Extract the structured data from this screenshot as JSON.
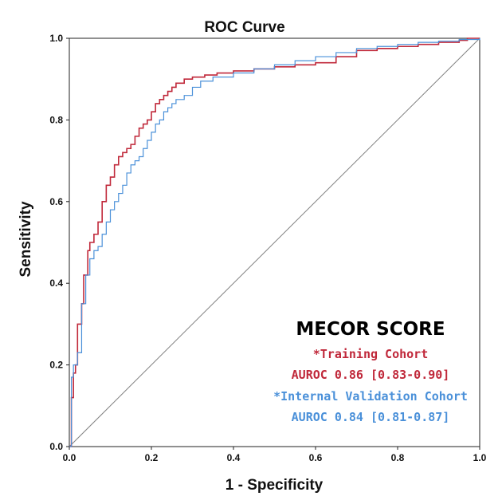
{
  "chart_data": {
    "type": "line",
    "title": "ROC Curve",
    "xlabel": "1 - Specificity",
    "ylabel": "Sensitivity",
    "xlim": [
      0.0,
      1.0
    ],
    "ylim": [
      0.0,
      1.0
    ],
    "x_ticks": [
      "0.0",
      "0.2",
      "0.4",
      "0.6",
      "0.8",
      "1.0"
    ],
    "y_ticks": [
      "0.0",
      "0.2",
      "0.4",
      "0.6",
      "0.8",
      "1.0"
    ],
    "grid": false,
    "reference_line": {
      "x": [
        0,
        1
      ],
      "y": [
        0,
        1
      ],
      "color": "#808080"
    },
    "series": [
      {
        "color": "#c0283a",
        "x": [
          0,
          0.005,
          0.01,
          0.015,
          0.02,
          0.03,
          0.035,
          0.045,
          0.05,
          0.06,
          0.07,
          0.08,
          0.09,
          0.1,
          0.11,
          0.12,
          0.13,
          0.14,
          0.15,
          0.16,
          0.17,
          0.18,
          0.19,
          0.2,
          0.21,
          0.22,
          0.23,
          0.24,
          0.25,
          0.26,
          0.28,
          0.3,
          0.33,
          0.36,
          0.4,
          0.45,
          0.5,
          0.55,
          0.6,
          0.65,
          0.7,
          0.75,
          0.8,
          0.85,
          0.9,
          0.95,
          0.97,
          1.0
        ],
        "y": [
          0,
          0.12,
          0.18,
          0.2,
          0.3,
          0.35,
          0.42,
          0.48,
          0.5,
          0.52,
          0.55,
          0.6,
          0.64,
          0.66,
          0.69,
          0.71,
          0.72,
          0.73,
          0.74,
          0.76,
          0.78,
          0.79,
          0.8,
          0.82,
          0.84,
          0.85,
          0.86,
          0.87,
          0.88,
          0.89,
          0.9,
          0.905,
          0.91,
          0.915,
          0.92,
          0.925,
          0.93,
          0.935,
          0.94,
          0.955,
          0.97,
          0.975,
          0.98,
          0.985,
          0.99,
          0.995,
          1.0,
          1.0
        ]
      },
      {
        "color": "#4a90d9",
        "x": [
          0,
          0.005,
          0.01,
          0.02,
          0.03,
          0.04,
          0.05,
          0.06,
          0.07,
          0.08,
          0.09,
          0.1,
          0.11,
          0.12,
          0.13,
          0.14,
          0.15,
          0.16,
          0.17,
          0.18,
          0.19,
          0.2,
          0.21,
          0.22,
          0.23,
          0.24,
          0.25,
          0.26,
          0.28,
          0.3,
          0.32,
          0.35,
          0.4,
          0.45,
          0.5,
          0.55,
          0.6,
          0.65,
          0.7,
          0.75,
          0.8,
          0.85,
          0.9,
          0.95,
          1.0
        ],
        "y": [
          0,
          0.17,
          0.2,
          0.23,
          0.35,
          0.42,
          0.46,
          0.48,
          0.49,
          0.52,
          0.55,
          0.58,
          0.6,
          0.62,
          0.64,
          0.67,
          0.69,
          0.7,
          0.71,
          0.73,
          0.75,
          0.77,
          0.79,
          0.8,
          0.82,
          0.83,
          0.84,
          0.85,
          0.86,
          0.88,
          0.895,
          0.905,
          0.915,
          0.925,
          0.935,
          0.945,
          0.955,
          0.965,
          0.975,
          0.98,
          0.985,
          0.99,
          0.993,
          0.997,
          1.0
        ]
      }
    ]
  },
  "annotation": {
    "heading": "MECOR SCORE",
    "training_label": "*Training Cohort",
    "training_auroc": "AUROC 0.86 [0.83-0.90]",
    "validation_label": "*Internal Validation Cohort",
    "validation_auroc": "AUROC 0.84 [0.81-0.87]",
    "training_color": "#c0283a",
    "validation_color": "#4a90d9"
  }
}
